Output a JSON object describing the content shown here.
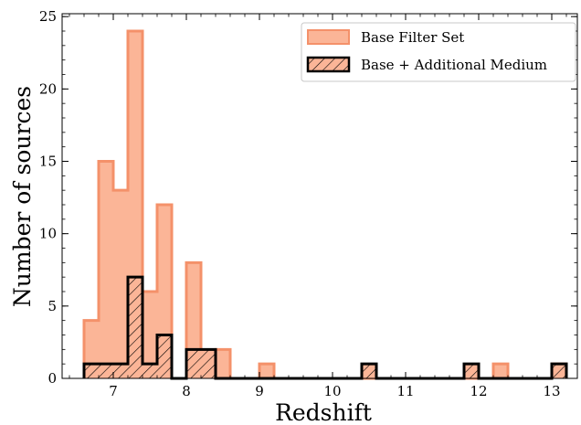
{
  "chart_data": {
    "type": "bar",
    "xlabel": "Redshift",
    "ylabel": "Number of sources",
    "xlim": [
      6.3,
      13.35
    ],
    "ylim": [
      0,
      25.2
    ],
    "xticks": [
      "7",
      "8",
      "9",
      "10",
      "11",
      "12",
      "13"
    ],
    "yticks": [
      "0",
      "5",
      "10",
      "15",
      "20",
      "25"
    ],
    "grid": false,
    "legend_position": "top-right",
    "bin_edges": [
      6.6,
      6.8,
      7.0,
      7.2,
      7.4,
      7.6,
      7.8,
      8.0,
      8.2,
      8.4,
      8.6,
      8.8,
      9.0,
      9.2,
      9.4,
      9.6,
      9.8,
      10.0,
      10.2,
      10.4,
      10.6,
      10.8,
      11.0,
      11.2,
      11.4,
      11.6,
      11.8,
      12.0,
      12.2,
      12.4,
      12.6,
      12.8,
      13.0,
      13.2
    ],
    "series": [
      {
        "name": "Base Filter Set",
        "style": "filled",
        "color": "#fbb597",
        "edge_color": "#f4916a",
        "values": [
          4,
          15,
          13,
          24,
          6,
          12,
          0,
          8,
          1,
          2,
          0,
          0,
          1,
          0,
          0,
          0,
          0,
          0,
          0,
          0,
          0,
          0,
          0,
          0,
          0,
          0,
          0,
          0,
          1,
          0,
          0,
          0,
          1
        ]
      },
      {
        "name": "Base + Additional Medium",
        "style": "hatched",
        "color": "#000000",
        "bin_edges": [
          6.6,
          6.8,
          7.0,
          7.2,
          7.4,
          7.6,
          7.8,
          8.0,
          8.2,
          8.4,
          8.6,
          8.8,
          9.0,
          9.2,
          9.4,
          9.6,
          9.8,
          10.0,
          10.2,
          10.4,
          10.6,
          10.8,
          11.0,
          11.2,
          11.4,
          11.6,
          11.8,
          12.0,
          12.2,
          12.4,
          12.6,
          12.8,
          13.0,
          13.2
        ],
        "values": [
          1,
          1,
          1,
          7,
          1,
          3,
          0,
          2,
          2,
          0,
          0,
          0,
          0,
          0,
          0,
          0,
          0,
          0,
          0,
          1,
          0,
          0,
          0,
          0,
          0,
          0,
          1,
          0,
          0,
          0,
          0,
          0,
          1
        ]
      }
    ]
  }
}
